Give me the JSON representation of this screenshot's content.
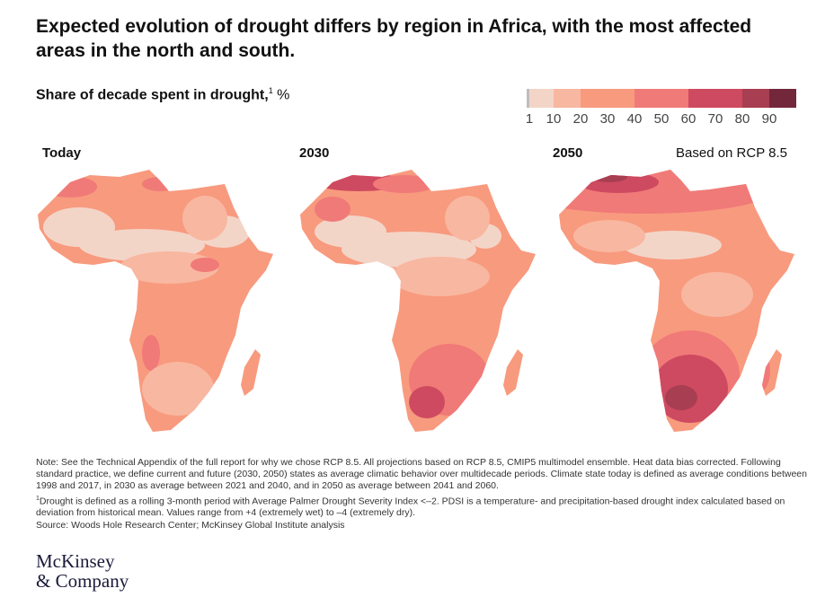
{
  "title": "Expected evolution of drought differs by region in Africa, with the most affected areas in the north and south.",
  "subtitle": {
    "text": "Share of decade spent in drought,",
    "footnote": "1",
    "unit": "%"
  },
  "legend": {
    "ticks": [
      "1",
      "10",
      "20",
      "30",
      "40",
      "50",
      "60",
      "70",
      "80",
      "90"
    ],
    "bins": [
      {
        "from": 0,
        "to": 1,
        "color": "#BDBDBD"
      },
      {
        "from": 1,
        "to": 10,
        "color": "#F3D5C8"
      },
      {
        "from": 10,
        "to": 20,
        "color": "#F8B7A0"
      },
      {
        "from": 20,
        "to": 40,
        "color": "#F89A7E"
      },
      {
        "from": 40,
        "to": 60,
        "color": "#F07A78"
      },
      {
        "from": 60,
        "to": 80,
        "color": "#CE4A60"
      },
      {
        "from": 80,
        "to": 90,
        "color": "#A83E52"
      },
      {
        "from": 90,
        "to": 100,
        "color": "#72283A"
      }
    ]
  },
  "maps": [
    {
      "label": "Today"
    },
    {
      "label": "2030"
    },
    {
      "label": "2050"
    }
  ],
  "scenario": "Based on RCP 8.5",
  "notes": [
    "Note: See the Technical Appendix of the full report for why we chose RCP 8.5. All projections based on RCP 8.5, CMIP5 multimodel ensemble. Heat data bias corrected. Following standard practice, we define current and future (2030, 2050) states as average climatic behavior over multidecade periods. Climate state today is defined as average conditions between 1998 and 2017, in 2030 as average between 2021 and 2040, and in 2050 as average between 2041 and 2060.",
    "Drought is defined as a rolling 3-month period with Average Palmer Drought Severity Index <–2. PDSI is a temperature- and precipitation-based drought index calculated based on deviation from historical mean. Values range from +4 (extremely wet) to –4 (extremely dry).",
    "Source: Woods Hole Research Center; McKinsey Global Institute analysis"
  ],
  "note_footnote": "1",
  "logo": [
    "McKinsey",
    "& Company"
  ]
}
